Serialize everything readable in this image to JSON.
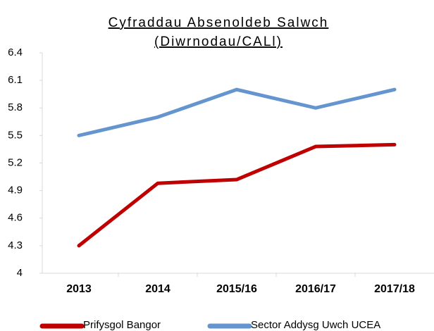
{
  "chart_data": {
    "type": "line",
    "title": [
      "Cyfraddau Absenoldeb Salwch",
      "(Diwrnodau/CALl)"
    ],
    "categories": [
      "2013",
      "2014",
      "2015/16",
      "2016/17",
      "2017/18"
    ],
    "series": [
      {
        "name": "Prifysgol Bangor",
        "color": "#c00000",
        "values": [
          4.3,
          4.98,
          5.02,
          5.38,
          5.4
        ]
      },
      {
        "name": "Sector Addysg Uwch UCEA",
        "color": "#6495cf",
        "values": [
          5.5,
          5.7,
          6.0,
          5.8,
          6.0
        ]
      }
    ],
    "ylim": [
      4,
      6.4
    ],
    "yticks": [
      4,
      4.3,
      4.6,
      4.9,
      5.2,
      5.5,
      5.8,
      6.1,
      6.4
    ],
    "grid": false,
    "legend": "bottom"
  }
}
